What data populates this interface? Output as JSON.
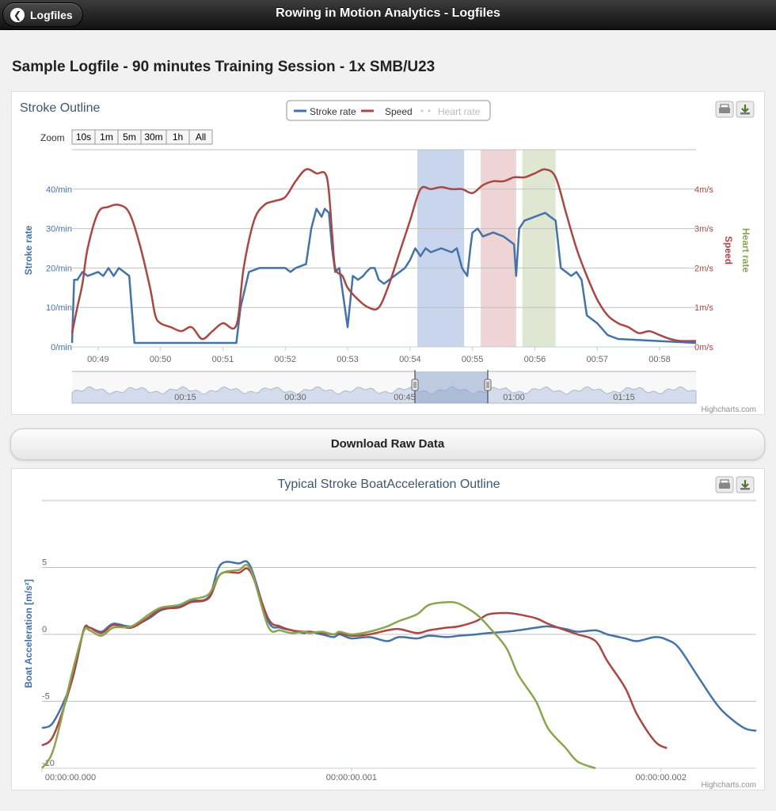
{
  "header": {
    "title": "Rowing in Motion Analytics - Logfiles",
    "back_label": "Logfiles"
  },
  "page_title": "Sample Logfile - 90 minutes Training Session - 1x SMB/U23",
  "download_label": "Download Raw Data",
  "credit": "Highcharts.com",
  "colors": {
    "stroke_rate": "#4572a7",
    "speed": "#aa4643",
    "heart_rate": "#89a54e"
  },
  "chart_data": [
    {
      "type": "line",
      "title": "Stroke Outline",
      "legend": {
        "placement": "top-center",
        "items": [
          "Stroke rate",
          "Speed",
          "Heart rate"
        ]
      },
      "zoom": {
        "label": "Zoom",
        "buttons": [
          "10s",
          "1m",
          "5m",
          "30m",
          "1h",
          "All"
        ]
      },
      "x_ticks": [
        "00:49",
        "00:50",
        "00:51",
        "00:52",
        "00:53",
        "00:54",
        "00:55",
        "00:56",
        "00:57",
        "00:58"
      ],
      "xlim": [
        "00:48:35",
        "00:58:35"
      ],
      "y_left": {
        "label": "Stroke rate",
        "ticks": [
          "0/min",
          "10/min",
          "20/min",
          "30/min",
          "40/min"
        ],
        "ylim": [
          0,
          50
        ]
      },
      "y_right": {
        "label": "Speed",
        "ticks": [
          "0m/s",
          "1m/s",
          "2m/s",
          "3m/s",
          "4m/s"
        ],
        "ylim": [
          0,
          5
        ]
      },
      "y_right2": {
        "label": "Heart rate"
      },
      "bands": [
        {
          "from": "00:54:07",
          "to": "00:54:52",
          "color": "#c8d5ec"
        },
        {
          "from": "00:55:08",
          "to": "00:55:42",
          "color": "#eed4d4"
        },
        {
          "from": "00:55:48",
          "to": "00:56:20",
          "color": "#dfe6d2"
        }
      ],
      "series": [
        {
          "name": "Stroke rate",
          "x": [
            "00:48:35",
            "00:48:37",
            "00:48:40",
            "00:48:45",
            "00:48:50",
            "00:49:00",
            "00:49:05",
            "00:49:10",
            "00:49:15",
            "00:49:20",
            "00:49:25",
            "00:49:30",
            "00:49:35",
            "00:51:13",
            "00:51:17",
            "00:51:25",
            "00:51:35",
            "00:51:50",
            "00:52:00",
            "00:52:05",
            "00:52:10",
            "00:52:20",
            "00:52:25",
            "00:52:30",
            "00:52:35",
            "00:52:38",
            "00:52:42",
            "00:52:45",
            "00:52:48",
            "00:52:52",
            "00:53:00",
            "00:53:05",
            "00:53:10",
            "00:53:15",
            "00:53:18",
            "00:53:22",
            "00:53:26",
            "00:53:30",
            "00:53:35",
            "00:53:40",
            "00:53:45",
            "00:53:50",
            "00:53:55",
            "00:54:00",
            "00:54:05",
            "00:54:10",
            "00:54:15",
            "00:54:20",
            "00:54:30",
            "00:54:40",
            "00:54:45",
            "00:54:50",
            "00:54:55",
            "00:54:58",
            "00:55:00",
            "00:55:05",
            "00:55:10",
            "00:55:20",
            "00:55:30",
            "00:55:35",
            "00:55:40",
            "00:55:42",
            "00:55:45",
            "00:55:50",
            "00:56:00",
            "00:56:10",
            "00:56:15",
            "00:56:20",
            "00:56:25",
            "00:56:30",
            "00:56:35",
            "00:56:40",
            "00:56:45",
            "00:56:50",
            "00:57:00",
            "00:57:10",
            "00:57:20",
            "00:58:35"
          ],
          "values": [
            1,
            17,
            17,
            19,
            18,
            19,
            18,
            20,
            18,
            20,
            19,
            18,
            1,
            1,
            10,
            19,
            20,
            20,
            20,
            19,
            20,
            21,
            30,
            35,
            33,
            35,
            34,
            25,
            19,
            20,
            5,
            18,
            17,
            18,
            19,
            20,
            20,
            17,
            16,
            17,
            18,
            19,
            20,
            22,
            25,
            23,
            25,
            24,
            25,
            24,
            25,
            20,
            18,
            25,
            29,
            30,
            28,
            29,
            28,
            27,
            26,
            18,
            30,
            32,
            33,
            34,
            33,
            32,
            20,
            19,
            18,
            19,
            17,
            8,
            6,
            3,
            2,
            1
          ]
        },
        {
          "name": "Speed",
          "x": [
            "00:48:35",
            "00:48:40",
            "00:48:45",
            "00:48:50",
            "00:49:00",
            "00:49:10",
            "00:49:20",
            "00:49:30",
            "00:49:40",
            "00:49:50",
            "00:49:55",
            "00:50:00",
            "00:50:10",
            "00:50:20",
            "00:50:30",
            "00:50:40",
            "00:50:50",
            "00:51:00",
            "00:51:13",
            "00:51:20",
            "00:51:30",
            "00:51:40",
            "00:51:50",
            "00:52:00",
            "00:52:10",
            "00:52:20",
            "00:52:30",
            "00:52:40",
            "00:52:45",
            "00:52:48",
            "00:52:55",
            "00:53:00",
            "00:53:10",
            "00:53:20",
            "00:53:30",
            "00:53:40",
            "00:53:50",
            "00:54:00",
            "00:54:10",
            "00:54:20",
            "00:54:30",
            "00:54:40",
            "00:54:50",
            "00:55:00",
            "00:55:10",
            "00:55:20",
            "00:55:30",
            "00:55:40",
            "00:55:50",
            "00:56:00",
            "00:56:10",
            "00:56:20",
            "00:56:30",
            "00:56:40",
            "00:56:50",
            "00:57:00",
            "00:57:10",
            "00:57:20",
            "00:57:30",
            "00:57:40",
            "00:57:50",
            "00:58:00",
            "00:58:10",
            "00:58:20",
            "00:58:35"
          ],
          "values": [
            0.35,
            1.0,
            1.6,
            2.5,
            3.4,
            3.55,
            3.6,
            3.4,
            2.6,
            1.5,
            0.8,
            0.6,
            0.5,
            0.4,
            0.5,
            0.2,
            0.4,
            0.6,
            0.55,
            2.0,
            3.2,
            3.6,
            3.7,
            3.8,
            4.2,
            4.5,
            4.4,
            4.3,
            2.9,
            2.0,
            1.8,
            1.5,
            1.2,
            1.0,
            1.0,
            1.6,
            2.4,
            3.2,
            4.0,
            4.0,
            4.05,
            4.0,
            4.0,
            3.9,
            4.1,
            4.2,
            4.2,
            4.3,
            4.3,
            4.4,
            4.5,
            4.3,
            3.4,
            2.5,
            1.8,
            1.2,
            0.8,
            0.6,
            0.5,
            0.35,
            0.4,
            0.3,
            0.2,
            0.15,
            0.15
          ]
        },
        {
          "name": "Heart rate",
          "x": [],
          "values": []
        }
      ],
      "navigator": {
        "x_ticks": [
          "00:15",
          "00:30",
          "00:45",
          "01:00",
          "01:15"
        ]
      },
      "grid": true
    },
    {
      "type": "line",
      "title": "Typical Stroke BoatAcceleration Outline",
      "ylabel": "Boat Acceleration [m/s²]",
      "y_ticks": [
        "5",
        "0",
        "-5",
        "-10"
      ],
      "ylim": [
        -10,
        10
      ],
      "x_ticks": [
        "00:00:00.000",
        "00:00:00.001",
        "00:00:00.002"
      ],
      "xlim": [
        0,
        0.0024
      ],
      "grid": true,
      "series": [
        {
          "color": "#4572a7",
          "x": [
            0,
            4e-05,
            0.0001,
            0.00014,
            0.00016,
            0.0002,
            0.00024,
            0.0003,
            0.00036,
            0.0004,
            0.00046,
            0.0005,
            0.00056,
            0.0006,
            0.00066,
            0.0007,
            0.00076,
            0.0008,
            0.00084,
            0.00088,
            0.0009,
            0.00094,
            0.00098,
            0.001,
            0.00104,
            0.0011,
            0.00116,
            0.0012,
            0.00126,
            0.0013,
            0.00136,
            0.0014,
            0.00146,
            0.0015,
            0.00156,
            0.0016,
            0.00166,
            0.0017,
            0.00176,
            0.0018,
            0.00186,
            0.0019,
            0.00196,
            0.002,
            0.00206,
            0.0021,
            0.00214,
            0.0022,
            0.00226,
            0.0023,
            0.00236,
            0.0024
          ],
          "values": [
            -7,
            -6.5,
            -3.5,
            0.3,
            0.5,
            0.2,
            0.8,
            0.6,
            1.2,
            1.8,
            2.1,
            2.5,
            2.8,
            5.2,
            5.3,
            5.1,
            1,
            0.5,
            0.3,
            0.1,
            0.2,
            0,
            -0.2,
            0,
            -0.3,
            -0.2,
            -0.5,
            -0.2,
            -0.3,
            -0.1,
            -0.2,
            -0.1,
            0,
            0.1,
            0.2,
            0.3,
            0.5,
            0.6,
            0.4,
            0.2,
            0.3,
            0,
            -0.3,
            -0.5,
            -0.2,
            -0.4,
            -1,
            -3,
            -5,
            -6,
            -7,
            -7.2
          ]
        },
        {
          "color": "#aa4643",
          "x": [
            0,
            4e-05,
            0.0001,
            0.00014,
            0.00016,
            0.0002,
            0.00024,
            0.0003,
            0.00036,
            0.0004,
            0.00046,
            0.0005,
            0.00056,
            0.0006,
            0.00066,
            0.0007,
            0.00076,
            0.0008,
            0.00084,
            0.00088,
            0.0009,
            0.00094,
            0.00098,
            0.001,
            0.00104,
            0.0011,
            0.00116,
            0.0012,
            0.00126,
            0.0013,
            0.00136,
            0.0014,
            0.00146,
            0.0015,
            0.00156,
            0.0016,
            0.00166,
            0.0017,
            0.00176,
            0.0018,
            0.00186,
            0.0019,
            0.00196,
            0.002,
            0.00206,
            0.0021
          ],
          "values": [
            -8.3,
            -7.5,
            -3.5,
            0.3,
            0.5,
            0.1,
            0.7,
            0.5,
            1.3,
            1.9,
            2.0,
            2.4,
            2.7,
            4.5,
            4.6,
            4.7,
            1.2,
            0.6,
            0.3,
            0.2,
            0.2,
            0.1,
            0,
            0.1,
            -0.1,
            0,
            0.3,
            0.4,
            0.1,
            0.3,
            0.5,
            0.6,
            1,
            1.5,
            1.6,
            1.5,
            1.2,
            0.8,
            0.3,
            0,
            -0.5,
            -2,
            -4,
            -6,
            -8,
            -8.5
          ]
        },
        {
          "color": "#89a54e",
          "x": [
            0,
            4e-05,
            0.0001,
            0.00014,
            0.00016,
            0.0002,
            0.00024,
            0.0003,
            0.00036,
            0.0004,
            0.00046,
            0.0005,
            0.00056,
            0.0006,
            0.00066,
            0.0007,
            0.00076,
            0.0008,
            0.00084,
            0.00088,
            0.0009,
            0.00094,
            0.00098,
            0.001,
            0.00104,
            0.0011,
            0.00116,
            0.0012,
            0.00126,
            0.0013,
            0.00136,
            0.0014,
            0.00146,
            0.0015,
            0.00156,
            0.0016,
            0.00166,
            0.0017,
            0.00176,
            0.0018,
            0.00186
          ],
          "values": [
            -10,
            -8.5,
            -3,
            0.2,
            0.3,
            -0.1,
            0.5,
            0.6,
            1.5,
            2.0,
            2.2,
            2.6,
            3.0,
            4.5,
            4.8,
            4.9,
            0.6,
            0.3,
            0.1,
            0.2,
            0.1,
            0.2,
            0,
            0.2,
            0,
            0.2,
            0.6,
            1,
            1.5,
            2.2,
            2.4,
            2.3,
            1.5,
            0.6,
            -1,
            -3,
            -5,
            -7,
            -8.5,
            -9.5,
            -10
          ]
        }
      ]
    }
  ]
}
